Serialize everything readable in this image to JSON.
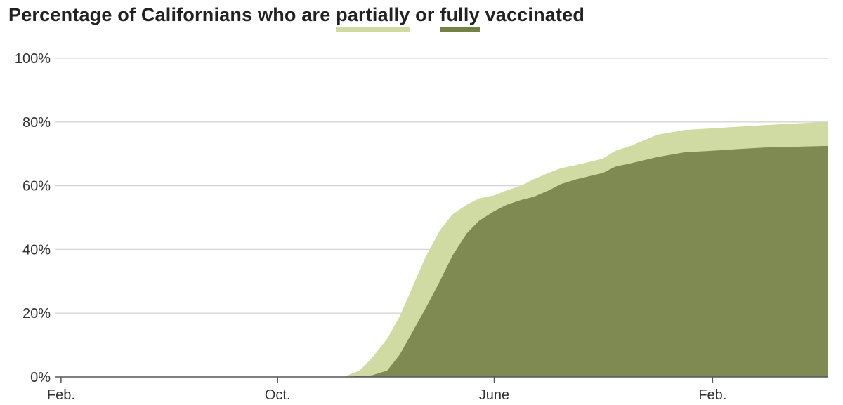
{
  "title": {
    "prefix": "Percentage of Californians who are ",
    "partial_word": "partially",
    "middle": " or ",
    "full_word": "fully",
    "suffix": " vaccinated"
  },
  "colors": {
    "partial": "#cfdba2",
    "full": "#7f8a52",
    "grid": "#d4d4d4",
    "axis": "#555555"
  },
  "chart_data": {
    "type": "area",
    "x_tick_labels": [
      "Feb.",
      "Oct.",
      "June",
      "Feb."
    ],
    "x_tick_dates": [
      "2020-02-01",
      "2020-10-01",
      "2021-06-01",
      "2022-02-01"
    ],
    "xlim": [
      "2020-01-25",
      "2022-06-10"
    ],
    "y_tick_labels": [
      "0%",
      "20%",
      "40%",
      "60%",
      "80%",
      "100%"
    ],
    "ylim": [
      0,
      100
    ],
    "grid": true,
    "series": [
      {
        "name": "partially",
        "points": [
          [
            "2020-12-14",
            0
          ],
          [
            "2021-01-01",
            2
          ],
          [
            "2021-01-15",
            6
          ],
          [
            "2021-02-01",
            12
          ],
          [
            "2021-02-15",
            19
          ],
          [
            "2021-03-01",
            28
          ],
          [
            "2021-03-15",
            37
          ],
          [
            "2021-04-01",
            46
          ],
          [
            "2021-04-15",
            51
          ],
          [
            "2021-05-01",
            54
          ],
          [
            "2021-05-15",
            56
          ],
          [
            "2021-06-01",
            57
          ],
          [
            "2021-06-15",
            58.5
          ],
          [
            "2021-07-01",
            60
          ],
          [
            "2021-07-15",
            62
          ],
          [
            "2021-08-01",
            64
          ],
          [
            "2021-08-15",
            65.5
          ],
          [
            "2021-09-01",
            66.5
          ],
          [
            "2021-10-01",
            68.5
          ],
          [
            "2021-10-15",
            71
          ],
          [
            "2021-11-01",
            72.5
          ],
          [
            "2021-12-01",
            76
          ],
          [
            "2022-01-01",
            77.5
          ],
          [
            "2022-02-01",
            78
          ],
          [
            "2022-03-01",
            78.5
          ],
          [
            "2022-04-01",
            79
          ],
          [
            "2022-05-01",
            79.5
          ],
          [
            "2022-06-10",
            80
          ]
        ]
      },
      {
        "name": "fully",
        "points": [
          [
            "2020-12-14",
            0
          ],
          [
            "2021-01-15",
            0.5
          ],
          [
            "2021-02-01",
            2
          ],
          [
            "2021-02-15",
            7
          ],
          [
            "2021-03-01",
            14
          ],
          [
            "2021-03-15",
            21
          ],
          [
            "2021-04-01",
            30
          ],
          [
            "2021-04-15",
            38
          ],
          [
            "2021-05-01",
            45
          ],
          [
            "2021-05-15",
            49
          ],
          [
            "2021-06-01",
            52
          ],
          [
            "2021-06-15",
            54
          ],
          [
            "2021-07-01",
            55.5
          ],
          [
            "2021-07-15",
            56.5
          ],
          [
            "2021-08-01",
            58.5
          ],
          [
            "2021-08-15",
            60.5
          ],
          [
            "2021-09-01",
            62
          ],
          [
            "2021-10-01",
            64
          ],
          [
            "2021-10-15",
            66
          ],
          [
            "2021-11-01",
            67
          ],
          [
            "2021-12-01",
            69
          ],
          [
            "2022-01-01",
            70.5
          ],
          [
            "2022-02-01",
            71
          ],
          [
            "2022-03-01",
            71.5
          ],
          [
            "2022-04-01",
            72
          ],
          [
            "2022-05-01",
            72.2
          ],
          [
            "2022-06-10",
            72.5
          ]
        ]
      }
    ]
  }
}
